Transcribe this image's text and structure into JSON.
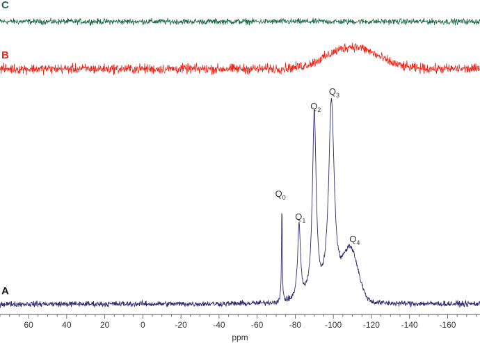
{
  "chart_data": {
    "type": "line",
    "title": "",
    "xlabel": "ppm",
    "ylabel": "",
    "xlim": [
      75,
      -177
    ],
    "x_reversed": true,
    "x_ticks": [
      60,
      40,
      20,
      0,
      -20,
      -40,
      -60,
      -80,
      -100,
      -120,
      -140,
      -160
    ],
    "x_tick_labels": [
      "60",
      "40",
      "20",
      "0",
      "-20",
      "-40",
      "-60",
      "-80",
      "-100",
      "-120",
      "-140",
      "-160"
    ],
    "grid": false,
    "colors": {
      "C": "#1e6b45",
      "B": "#e8291c",
      "A": "#2d2a6e",
      "axis": "#555555"
    },
    "series": [
      {
        "name": "C",
        "peaks": [],
        "noise": 0.05
      },
      {
        "name": "B",
        "peaks": [
          {
            "center": -110,
            "height": 0.32,
            "width": 13
          }
        ],
        "noise": 0.05
      },
      {
        "name": "A",
        "peaks": [
          {
            "label": "Q",
            "sub": "0",
            "center": -73,
            "height": 1.0,
            "width": 0.25
          },
          {
            "label": "Q",
            "sub": "1",
            "center": -82,
            "height": 0.78,
            "width": 0.9
          },
          {
            "label": "Q",
            "sub": "2",
            "center": -90,
            "height": 1.9,
            "width": 1.2
          },
          {
            "label": "Q",
            "sub": "3",
            "center": -99,
            "height": 2.05,
            "width": 1.8
          },
          {
            "label": "Q",
            "sub": "4",
            "center": -109,
            "height": 0.52,
            "width": 4
          }
        ],
        "noise": 0.02
      }
    ]
  }
}
